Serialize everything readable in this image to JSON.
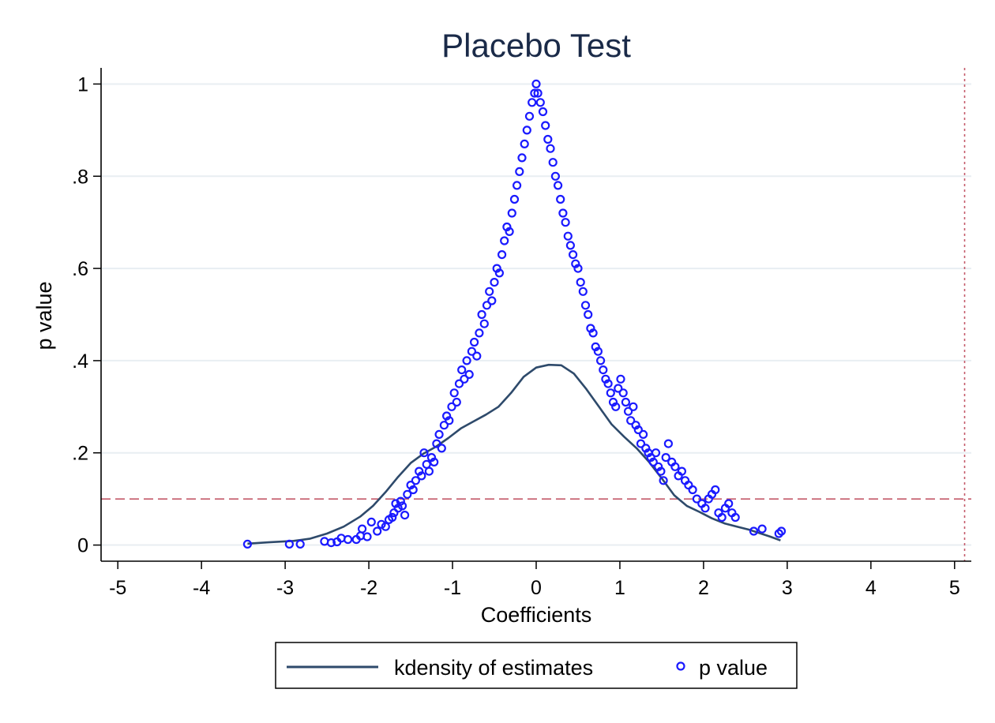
{
  "chart_data": {
    "type": "scatter",
    "title": "Placebo Test",
    "xlabel": "Coefficients",
    "ylabel": "p value",
    "xlim": [
      -5.2,
      5.2
    ],
    "ylim": [
      -0.035,
      1.035
    ],
    "x_ticks": [
      -5,
      -4,
      -3,
      -2,
      -1,
      0,
      1,
      2,
      3,
      4,
      5
    ],
    "x_tick_labels": [
      "-5",
      "-4",
      "-3",
      "-2",
      "-1",
      "0",
      "1",
      "2",
      "3",
      "4",
      "5"
    ],
    "y_ticks": [
      0,
      0.2,
      0.4,
      0.6,
      0.8,
      1
    ],
    "y_tick_labels": [
      "0",
      ".2",
      ".4",
      ".6",
      ".8",
      "1"
    ],
    "grid": "horizontal",
    "legend_position": "bottom",
    "reference_lines": {
      "horizontal": {
        "y": 0.1,
        "style": "dashed",
        "color": "#c45a6a"
      },
      "vertical": {
        "x": 5.12,
        "style": "dotted",
        "color": "#c45a6a"
      }
    },
    "colors": {
      "title": "#1a2a48",
      "kdensity": "#2e4a6b",
      "p_value": "#1a1aff",
      "grid": "#e8eef2",
      "reference": "#c45a6a"
    },
    "series": [
      {
        "name": "kdensity of estimates",
        "kind": "line",
        "points": [
          [
            -3.45,
            0.003
          ],
          [
            -3.2,
            0.006
          ],
          [
            -2.9,
            0.009
          ],
          [
            -2.7,
            0.014
          ],
          [
            -2.5,
            0.025
          ],
          [
            -2.3,
            0.04
          ],
          [
            -2.1,
            0.062
          ],
          [
            -1.95,
            0.085
          ],
          [
            -1.8,
            0.115
          ],
          [
            -1.65,
            0.148
          ],
          [
            -1.5,
            0.178
          ],
          [
            -1.35,
            0.198
          ],
          [
            -1.2,
            0.213
          ],
          [
            -1.05,
            0.232
          ],
          [
            -0.9,
            0.253
          ],
          [
            -0.75,
            0.268
          ],
          [
            -0.6,
            0.283
          ],
          [
            -0.45,
            0.3
          ],
          [
            -0.3,
            0.33
          ],
          [
            -0.15,
            0.365
          ],
          [
            0,
            0.385
          ],
          [
            0.15,
            0.391
          ],
          [
            0.3,
            0.39
          ],
          [
            0.45,
            0.372
          ],
          [
            0.6,
            0.338
          ],
          [
            0.75,
            0.3
          ],
          [
            0.9,
            0.262
          ],
          [
            1.05,
            0.235
          ],
          [
            1.2,
            0.21
          ],
          [
            1.35,
            0.18
          ],
          [
            1.5,
            0.145
          ],
          [
            1.65,
            0.108
          ],
          [
            1.8,
            0.085
          ],
          [
            1.95,
            0.072
          ],
          [
            2.1,
            0.058
          ],
          [
            2.25,
            0.047
          ],
          [
            2.4,
            0.04
          ],
          [
            2.55,
            0.033
          ],
          [
            2.7,
            0.024
          ],
          [
            2.8,
            0.018
          ],
          [
            2.92,
            0.01
          ]
        ]
      },
      {
        "name": "p value",
        "kind": "markers",
        "x": [
          -3.45,
          -2.95,
          -2.82,
          -2.53,
          -2.45,
          -2.38,
          -2.33,
          -2.25,
          -2.15,
          -2.1,
          -2.08,
          -2.02,
          -1.97,
          -1.9,
          -1.85,
          -1.8,
          -1.76,
          -1.72,
          -1.7,
          -1.68,
          -1.65,
          -1.62,
          -1.6,
          -1.57,
          -1.54,
          -1.5,
          -1.47,
          -1.44,
          -1.4,
          -1.37,
          -1.34,
          -1.31,
          -1.28,
          -1.25,
          -1.22,
          -1.19,
          -1.16,
          -1.13,
          -1.1,
          -1.07,
          -1.04,
          -1.01,
          -0.98,
          -0.95,
          -0.92,
          -0.89,
          -0.86,
          -0.83,
          -0.8,
          -0.77,
          -0.74,
          -0.71,
          -0.68,
          -0.65,
          -0.62,
          -0.59,
          -0.56,
          -0.53,
          -0.5,
          -0.47,
          -0.44,
          -0.41,
          -0.38,
          -0.35,
          -0.32,
          -0.29,
          -0.26,
          -0.23,
          -0.2,
          -0.17,
          -0.14,
          -0.11,
          -0.08,
          -0.05,
          -0.02,
          0,
          0.02,
          0.05,
          0.08,
          0.11,
          0.14,
          0.17,
          0.2,
          0.23,
          0.26,
          0.29,
          0.32,
          0.35,
          0.38,
          0.41,
          0.44,
          0.47,
          0.5,
          0.53,
          0.56,
          0.59,
          0.62,
          0.65,
          0.68,
          0.71,
          0.74,
          0.77,
          0.8,
          0.83,
          0.86,
          0.89,
          0.92,
          0.95,
          0.98,
          1.01,
          1.04,
          1.07,
          1.1,
          1.13,
          1.16,
          1.19,
          1.22,
          1.25,
          1.28,
          1.31,
          1.34,
          1.37,
          1.4,
          1.43,
          1.46,
          1.49,
          1.52,
          1.55,
          1.58,
          1.62,
          1.66,
          1.7,
          1.74,
          1.78,
          1.82,
          1.87,
          1.92,
          1.98,
          2.02,
          2.06,
          2.1,
          2.14,
          2.18,
          2.22,
          2.26,
          2.3,
          2.34,
          2.38,
          2.6,
          2.7,
          2.9,
          2.93
        ],
        "y": [
          0.002,
          0.002,
          0.002,
          0.008,
          0.005,
          0.007,
          0.015,
          0.012,
          0.012,
          0.02,
          0.035,
          0.018,
          0.05,
          0.03,
          0.045,
          0.04,
          0.055,
          0.06,
          0.07,
          0.09,
          0.08,
          0.095,
          0.085,
          0.065,
          0.11,
          0.13,
          0.12,
          0.14,
          0.16,
          0.15,
          0.2,
          0.175,
          0.16,
          0.19,
          0.18,
          0.22,
          0.24,
          0.21,
          0.26,
          0.28,
          0.27,
          0.3,
          0.33,
          0.31,
          0.35,
          0.38,
          0.36,
          0.4,
          0.37,
          0.42,
          0.44,
          0.41,
          0.46,
          0.5,
          0.48,
          0.52,
          0.55,
          0.53,
          0.57,
          0.6,
          0.59,
          0.63,
          0.66,
          0.69,
          0.68,
          0.72,
          0.75,
          0.78,
          0.81,
          0.84,
          0.87,
          0.9,
          0.93,
          0.96,
          0.98,
          1.0,
          0.98,
          0.96,
          0.94,
          0.91,
          0.88,
          0.86,
          0.83,
          0.8,
          0.78,
          0.75,
          0.72,
          0.7,
          0.67,
          0.65,
          0.63,
          0.61,
          0.6,
          0.57,
          0.55,
          0.52,
          0.5,
          0.47,
          0.46,
          0.43,
          0.42,
          0.4,
          0.38,
          0.36,
          0.35,
          0.33,
          0.31,
          0.3,
          0.34,
          0.36,
          0.33,
          0.31,
          0.29,
          0.27,
          0.3,
          0.26,
          0.25,
          0.22,
          0.24,
          0.21,
          0.2,
          0.19,
          0.18,
          0.2,
          0.17,
          0.16,
          0.14,
          0.19,
          0.22,
          0.18,
          0.17,
          0.15,
          0.16,
          0.14,
          0.13,
          0.12,
          0.1,
          0.09,
          0.08,
          0.1,
          0.11,
          0.12,
          0.07,
          0.06,
          0.08,
          0.09,
          0.07,
          0.06,
          0.03,
          0.035,
          0.025,
          0.03
        ]
      }
    ]
  }
}
